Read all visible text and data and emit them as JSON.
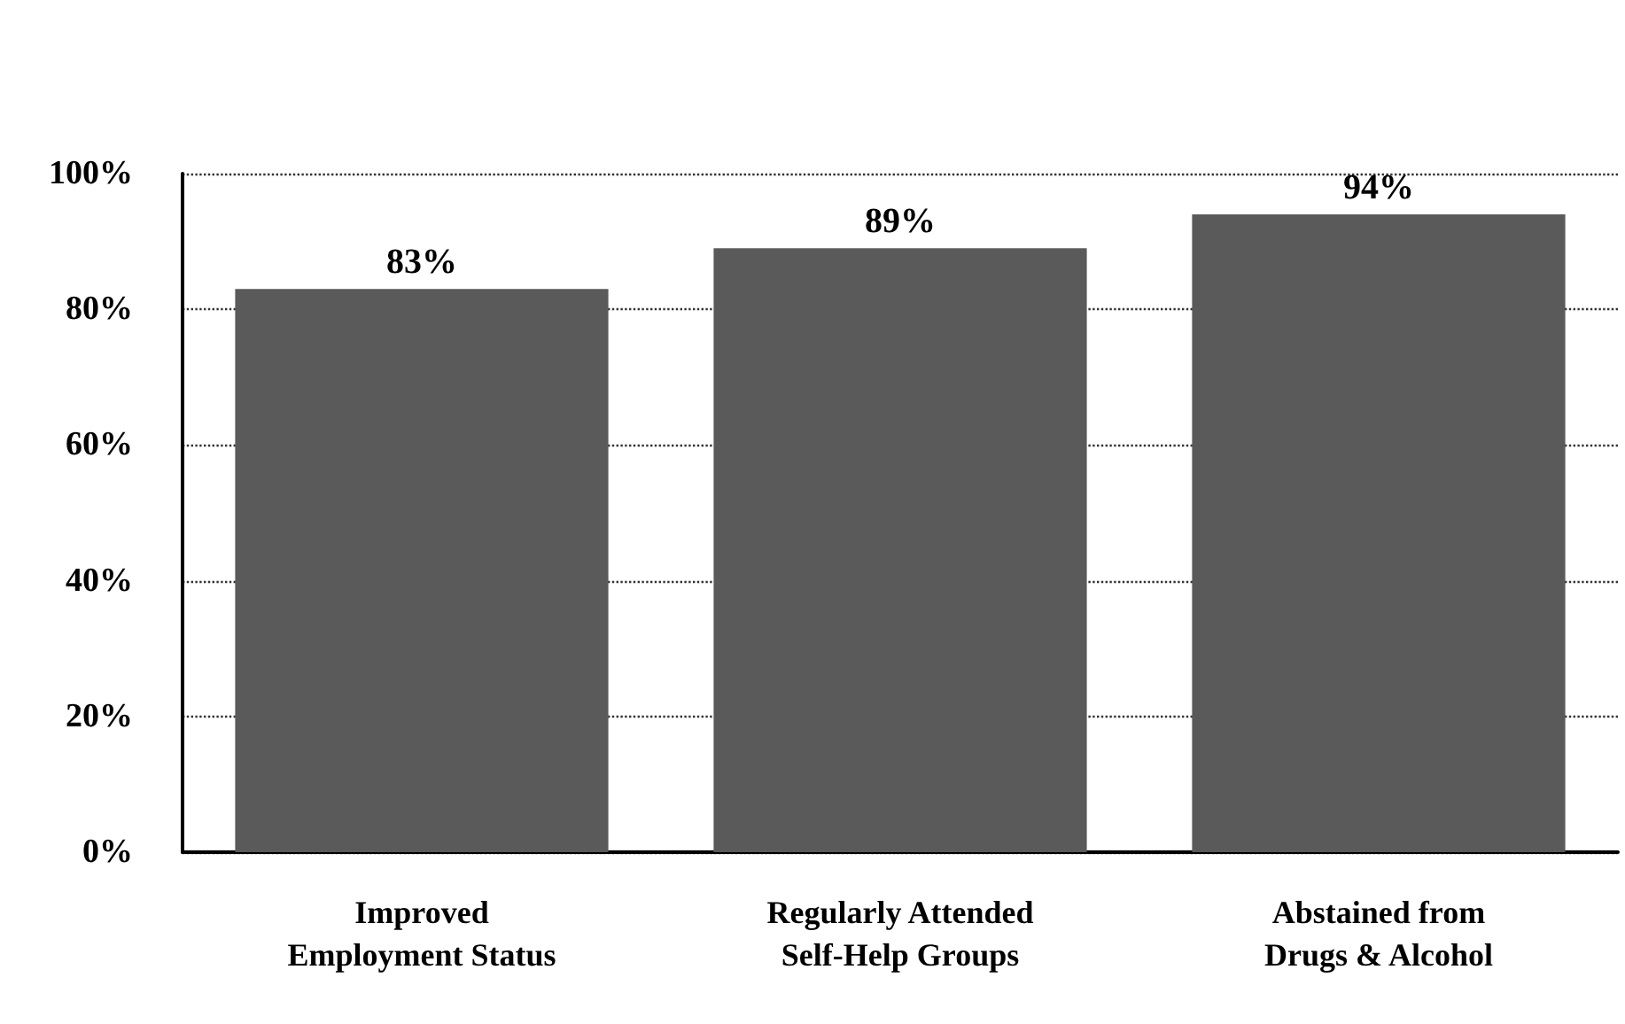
{
  "chart_data": {
    "type": "bar",
    "categories": [
      "Improved\nEmployment Status",
      "Regularly Attended\nSelf-Help Groups",
      "Abstained from\nDrugs & Alcohol"
    ],
    "values": [
      83,
      89,
      94
    ],
    "value_labels": [
      "83%",
      "89%",
      "94%"
    ],
    "color": "#5a5a5a",
    "ylim": [
      0,
      100
    ],
    "yticks": [
      {
        "value": 0,
        "label": "0%"
      },
      {
        "value": 20,
        "label": "20%"
      },
      {
        "value": 40,
        "label": "40%"
      },
      {
        "value": 60,
        "label": "60%"
      },
      {
        "value": 80,
        "label": "80%"
      },
      {
        "value": 100,
        "label": "100%"
      }
    ],
    "grid": "y"
  }
}
